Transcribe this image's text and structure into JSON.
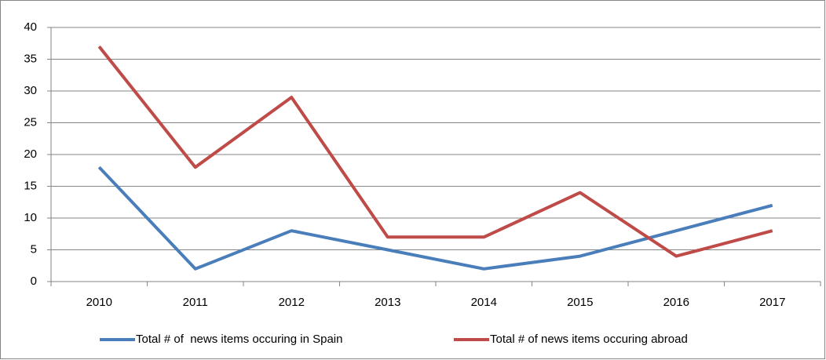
{
  "chart_data": {
    "type": "line",
    "categories": [
      "2010",
      "2011",
      "2012",
      "2013",
      "2014",
      "2015",
      "2016",
      "2017"
    ],
    "series": [
      {
        "name": "Total # of  news items occuring in Spain",
        "color": "#4a7ebb",
        "values": [
          18,
          2,
          8,
          5,
          2,
          4,
          8,
          12
        ]
      },
      {
        "name": "Total # of news items occuring abroad",
        "color": "#be4b48",
        "values": [
          37,
          18,
          29,
          7,
          7,
          14,
          4,
          8
        ]
      }
    ],
    "ylim": [
      0,
      40
    ],
    "yticks": [
      0,
      5,
      10,
      15,
      20,
      25,
      30,
      35,
      40
    ],
    "grid": true,
    "legend": "bottom"
  }
}
